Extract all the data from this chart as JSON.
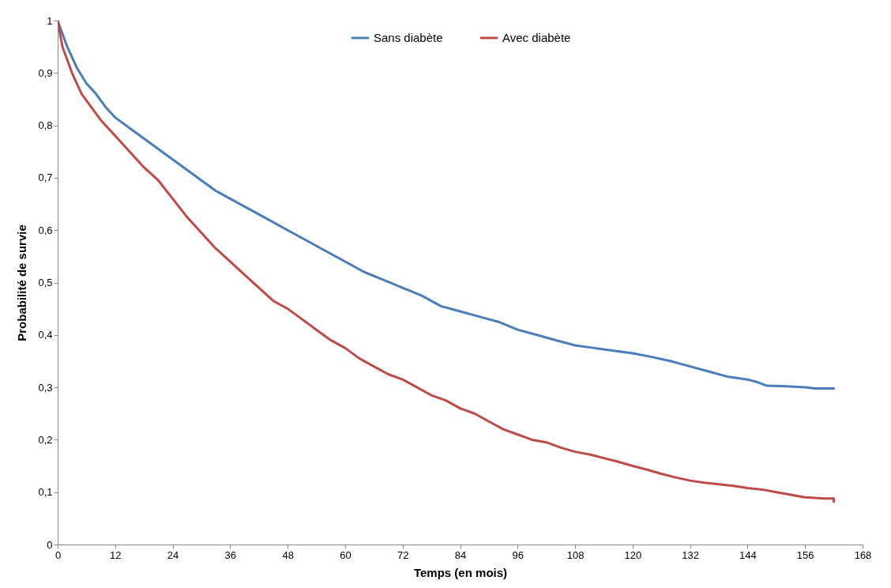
{
  "chart_data": {
    "type": "line",
    "xlabel": "Temps (en mois)",
    "ylabel": "Probabilité de survie",
    "xlim": [
      0,
      168
    ],
    "xticks": [
      0,
      12,
      24,
      36,
      48,
      60,
      72,
      84,
      96,
      108,
      120,
      132,
      144,
      156,
      168
    ],
    "ylim": [
      0,
      1
    ],
    "yticks": [
      0,
      {
        "value": 0.1,
        "label": "0,1"
      },
      {
        "value": 0.2,
        "label": "0,2"
      },
      {
        "value": 0.3,
        "label": "0,3"
      },
      {
        "value": 0.4,
        "label": "0,4"
      },
      {
        "value": 0.5,
        "label": "0,5"
      },
      {
        "value": 0.6,
        "label": "0,6"
      },
      {
        "value": 0.7,
        "label": "0,7"
      },
      {
        "value": 0.8,
        "label": "0,8"
      },
      {
        "value": 0.9,
        "label": "0,9"
      },
      1
    ],
    "grid": false,
    "legend": "top",
    "marker": "none",
    "line_style": "solid",
    "series": [
      {
        "name": "Sans diabète",
        "color": "#4a7ebb",
        "x": [
          0,
          2,
          4,
          6,
          8,
          10,
          12,
          15,
          18,
          21,
          24,
          27,
          30,
          33,
          36,
          40,
          44,
          48,
          52,
          56,
          60,
          64,
          68,
          72,
          76,
          80,
          84,
          88,
          92,
          96,
          100,
          104,
          108,
          112,
          116,
          120,
          124,
          128,
          132,
          136,
          140,
          144,
          146,
          148,
          152,
          156,
          158,
          162
        ],
        "values": [
          1,
          0.95,
          0.91,
          0.88,
          0.86,
          0.835,
          0.815,
          0.795,
          0.775,
          0.755,
          0.735,
          0.715,
          0.695,
          0.675,
          0.66,
          0.64,
          0.62,
          0.6,
          0.58,
          0.56,
          0.54,
          0.52,
          0.505,
          0.49,
          0.475,
          0.455,
          0.445,
          0.435,
          0.425,
          0.41,
          0.4,
          0.39,
          0.38,
          0.375,
          0.37,
          0.365,
          0.358,
          0.35,
          0.34,
          0.33,
          0.32,
          0.315,
          0.31,
          0.303,
          0.302,
          0.3,
          0.298,
          0.298
        ]
      },
      {
        "name": "Avec diabète",
        "color": "#be4b48",
        "x": [
          0,
          1,
          3,
          5,
          7,
          9,
          12,
          15,
          18,
          21,
          24,
          27,
          30,
          33,
          36,
          39,
          42,
          45,
          48,
          51,
          54,
          57,
          60,
          63,
          66,
          69,
          72,
          75,
          78,
          81,
          84,
          87,
          90,
          93,
          96,
          99,
          102,
          105,
          108,
          111,
          114,
          117,
          120,
          123,
          126,
          129,
          132,
          135,
          138,
          141,
          144,
          147,
          150,
          153,
          156,
          160,
          162,
          162
        ],
        "values": [
          1,
          0.95,
          0.9,
          0.86,
          0.835,
          0.81,
          0.78,
          0.75,
          0.72,
          0.695,
          0.66,
          0.625,
          0.595,
          0.565,
          0.54,
          0.515,
          0.49,
          0.465,
          0.45,
          0.43,
          0.41,
          0.39,
          0.375,
          0.355,
          0.34,
          0.325,
          0.315,
          0.3,
          0.285,
          0.275,
          0.26,
          0.25,
          0.235,
          0.22,
          0.21,
          0.2,
          0.195,
          0.185,
          0.177,
          0.172,
          0.165,
          0.158,
          0.15,
          0.143,
          0.135,
          0.128,
          0.122,
          0.118,
          0.115,
          0.112,
          0.108,
          0.105,
          0.1,
          0.095,
          0.09,
          0.088,
          0.088,
          0.082
        ]
      }
    ]
  }
}
